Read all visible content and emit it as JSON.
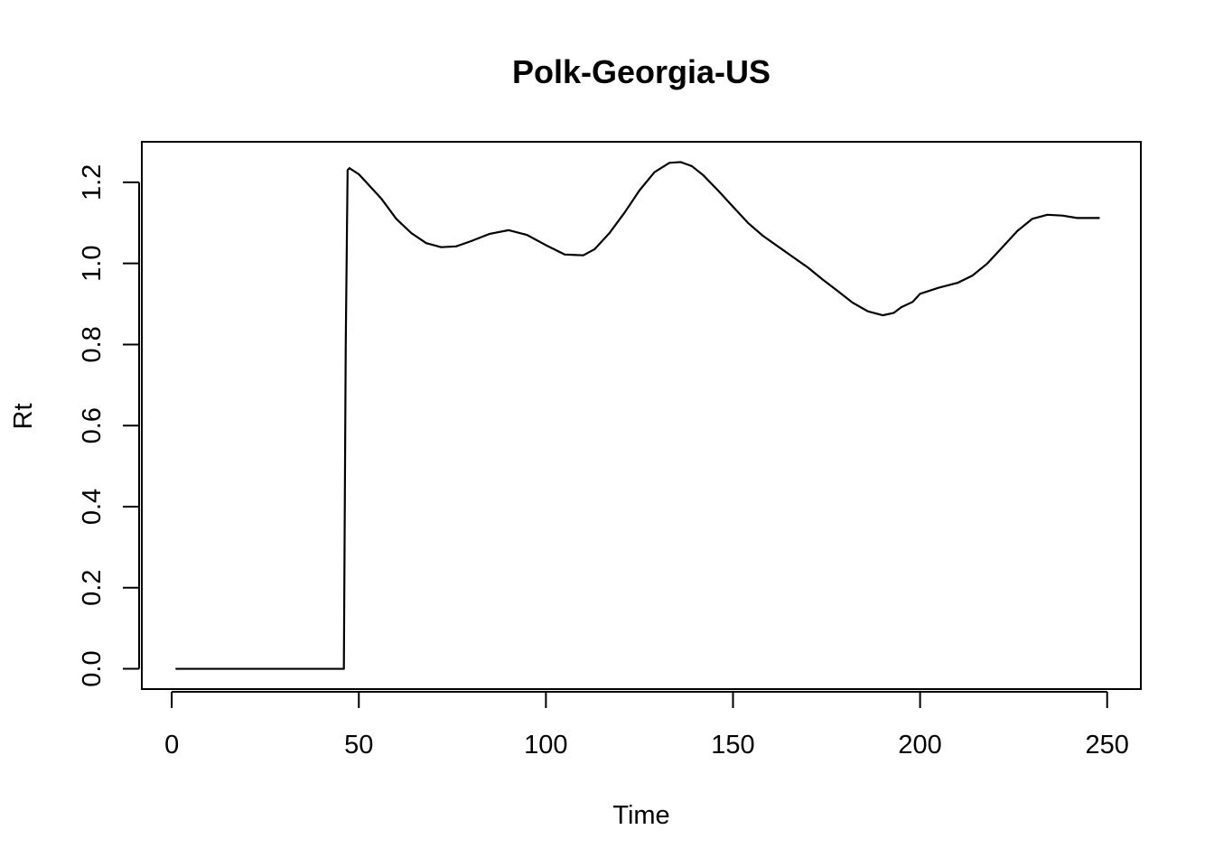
{
  "chart_data": {
    "type": "line",
    "title": "Polk-Georgia-US",
    "xlabel": "Time",
    "ylabel": "Rt",
    "xlim": [
      -8,
      259
    ],
    "ylim": [
      -0.05,
      1.3
    ],
    "xticks": [
      0,
      50,
      100,
      150,
      200,
      250
    ],
    "yticks": [
      0.0,
      0.2,
      0.4,
      0.6,
      0.8,
      1.0,
      1.2
    ],
    "xtick_labels": [
      "0",
      "50",
      "100",
      "150",
      "200",
      "250"
    ],
    "ytick_labels": [
      "0.0",
      "0.2",
      "0.4",
      "0.6",
      "0.8",
      "1.0",
      "1.2"
    ],
    "grid": false,
    "legend": "none",
    "series": [
      {
        "color": "#000000",
        "x": [
          1,
          10,
          20,
          30,
          40,
          46,
          46.5,
          47,
          47.5,
          50,
          53,
          56,
          60,
          64,
          68,
          72,
          76,
          80,
          85,
          90,
          95,
          100,
          105,
          110,
          113,
          117,
          121,
          125,
          129,
          133,
          136,
          139,
          142,
          146,
          150,
          154,
          158,
          162,
          166,
          170,
          174,
          178,
          182,
          186,
          190,
          193,
          195,
          198,
          200,
          205,
          210,
          214,
          218,
          222,
          226,
          230,
          234,
          238,
          242,
          248
        ],
        "y": [
          0.0,
          0.0,
          0.0,
          0.0,
          0.0,
          0.0,
          0.8,
          1.23,
          1.235,
          1.22,
          1.19,
          1.16,
          1.11,
          1.075,
          1.05,
          1.04,
          1.042,
          1.055,
          1.073,
          1.082,
          1.07,
          1.045,
          1.022,
          1.02,
          1.035,
          1.075,
          1.125,
          1.18,
          1.225,
          1.248,
          1.25,
          1.24,
          1.218,
          1.18,
          1.14,
          1.1,
          1.068,
          1.042,
          1.016,
          0.99,
          0.96,
          0.932,
          0.903,
          0.882,
          0.872,
          0.878,
          0.892,
          0.905,
          0.925,
          0.94,
          0.952,
          0.97,
          1.0,
          1.04,
          1.08,
          1.11,
          1.12,
          1.118,
          1.112,
          1.112
        ]
      }
    ]
  }
}
